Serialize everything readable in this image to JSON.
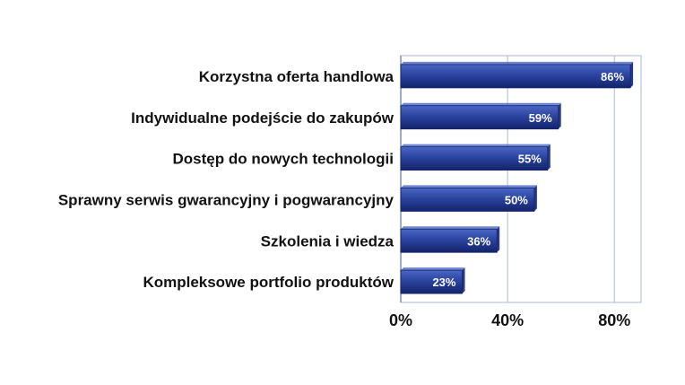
{
  "chart_data": {
    "type": "bar",
    "orientation": "horizontal",
    "categories": [
      "Korzystna oferta handlowa",
      "Indywidualne podejście do zakupów",
      "Dostęp do nowych technologii",
      "Sprawny serwis gwarancyjny i pogwarancyjny",
      "Szkolenia i wiedza",
      "Kompleksowe portfolio produktów"
    ],
    "values": [
      86,
      59,
      55,
      50,
      36,
      23
    ],
    "value_labels": [
      "86%",
      "59%",
      "55%",
      "50%",
      "36%",
      "23%"
    ],
    "xlim": [
      0,
      90
    ],
    "x_ticks": [
      0,
      40,
      80
    ],
    "x_tick_labels": [
      "0%",
      "40%",
      "80%"
    ],
    "grid": true,
    "legend": "none",
    "colors": {
      "bar": "#2b44a0",
      "bar_light": "#4a66c4",
      "bar_dark": "#13236b",
      "grid": "#a9b8d6",
      "axis": "#7f8fb3"
    }
  }
}
